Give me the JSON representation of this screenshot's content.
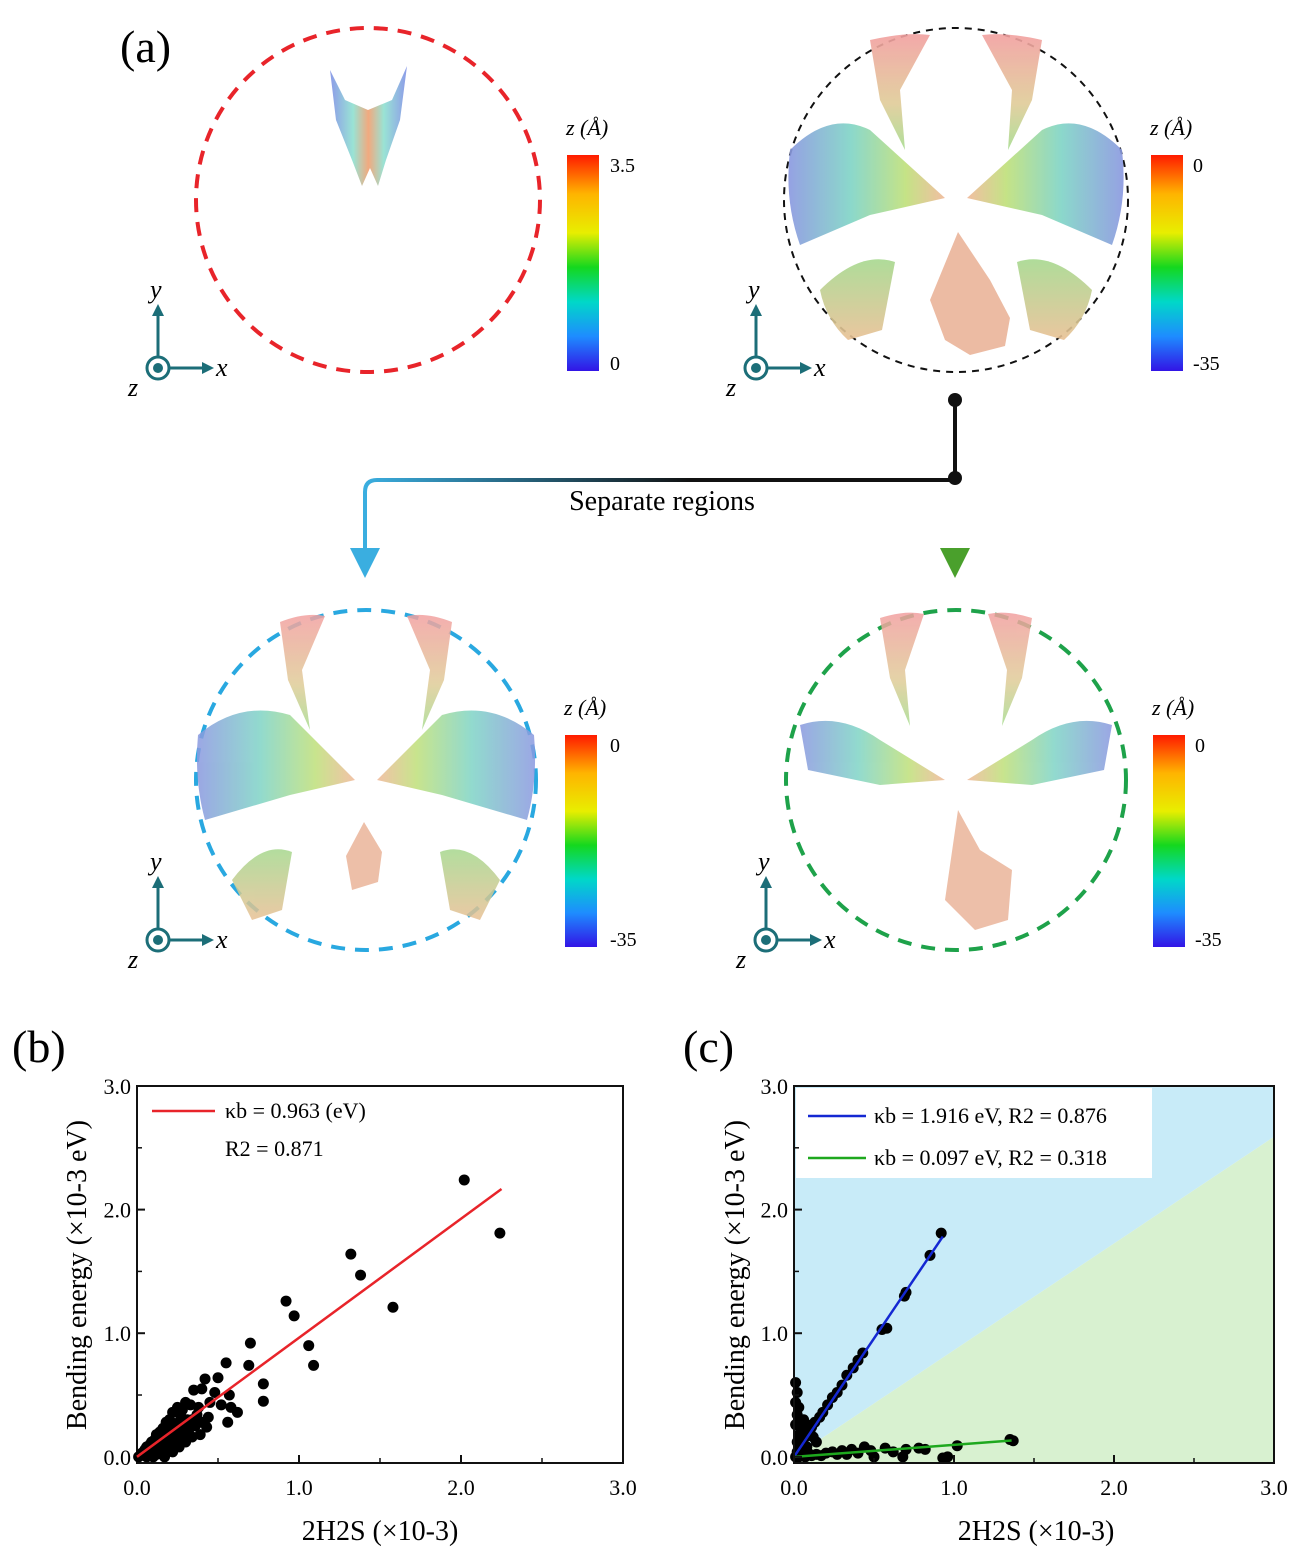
{
  "panel_a": {
    "label": "(a)",
    "axis_labels": {
      "y": "y",
      "x": "x",
      "z": "z"
    },
    "maps": [
      {
        "colorbar_title": "z (Å)",
        "cb_max": "3.5",
        "cb_min": "0",
        "border_color": "#e8242a"
      },
      {
        "colorbar_title": "z (Å)",
        "cb_max": "0",
        "cb_min": "-35",
        "border_color": "#111111"
      },
      {
        "colorbar_title": "z (Å)",
        "cb_max": "0",
        "cb_min": "-35",
        "border_color": "#29a8e0"
      },
      {
        "colorbar_title": "z (Å)",
        "cb_max": "0",
        "cb_min": "-35",
        "border_color": "#1ea24a"
      }
    ],
    "flow_label": "Separate regions",
    "arrow_colors": {
      "left": "#3aaee0",
      "right": "#4aa02c"
    }
  },
  "panel_b": {
    "label": "(b)",
    "chart_data": {
      "type": "scatter",
      "xlabel": "2H2S (×10-3)",
      "ylabel": "Bending energy (×10-3 eV)",
      "xlim": [
        0,
        3.0
      ],
      "ylim": [
        -0.05,
        3.0
      ],
      "xticks": [
        "0.0",
        "1.0",
        "2.0",
        "3.0"
      ],
      "yticks": [
        "0.0",
        "1.0",
        "2.0",
        "3.0"
      ],
      "legend": {
        "line1": "κb = 0.963 (eV)",
        "line2": "R2 = 0.871"
      },
      "fit": {
        "slope": 0.963,
        "x_range": [
          0,
          2.25
        ],
        "color": "#e8242a"
      },
      "points": [
        [
          2.02,
          2.24
        ],
        [
          2.24,
          1.81
        ],
        [
          1.32,
          1.64
        ],
        [
          1.38,
          1.47
        ],
        [
          1.58,
          1.21
        ],
        [
          0.92,
          1.26
        ],
        [
          0.97,
          1.14
        ],
        [
          1.06,
          0.9
        ],
        [
          1.09,
          0.74
        ],
        [
          0.7,
          0.92
        ],
        [
          0.69,
          0.74
        ],
        [
          0.78,
          0.59
        ],
        [
          0.78,
          0.45
        ],
        [
          0.55,
          0.76
        ],
        [
          0.5,
          0.64
        ],
        [
          0.42,
          0.63
        ],
        [
          0.57,
          0.5
        ],
        [
          0.48,
          0.52
        ],
        [
          0.52,
          0.42
        ],
        [
          0.58,
          0.4
        ],
        [
          0.4,
          0.55
        ],
        [
          0.35,
          0.54
        ],
        [
          0.45,
          0.44
        ],
        [
          0.44,
          0.32
        ],
        [
          0.56,
          0.28
        ],
        [
          0.62,
          0.36
        ],
        [
          0.38,
          0.4
        ],
        [
          0.33,
          0.42
        ],
        [
          0.3,
          0.44
        ],
        [
          0.34,
          0.3
        ],
        [
          0.28,
          0.38
        ],
        [
          0.25,
          0.4
        ],
        [
          0.27,
          0.33
        ],
        [
          0.22,
          0.36
        ],
        [
          0.3,
          0.26
        ],
        [
          0.26,
          0.28
        ],
        [
          0.2,
          0.3
        ],
        [
          0.23,
          0.25
        ],
        [
          0.18,
          0.28
        ],
        [
          0.21,
          0.2
        ],
        [
          0.16,
          0.23
        ],
        [
          0.14,
          0.2
        ],
        [
          0.19,
          0.16
        ],
        [
          0.12,
          0.18
        ],
        [
          0.11,
          0.14
        ],
        [
          0.15,
          0.12
        ],
        [
          0.09,
          0.12
        ],
        [
          0.08,
          0.1
        ],
        [
          0.13,
          0.08
        ],
        [
          0.06,
          0.08
        ],
        [
          0.05,
          0.06
        ],
        [
          0.1,
          0.05
        ],
        [
          0.04,
          0.04
        ],
        [
          0.03,
          0.03
        ],
        [
          0.07,
          0.02
        ],
        [
          0.02,
          0.01
        ],
        [
          0.12,
          0.02
        ],
        [
          0.16,
          0.06
        ],
        [
          0.2,
          0.1
        ],
        [
          0.24,
          0.14
        ],
        [
          0.28,
          0.18
        ],
        [
          0.32,
          0.22
        ],
        [
          0.36,
          0.25
        ],
        [
          0.17,
          0.0
        ],
        [
          0.22,
          0.04
        ],
        [
          0.26,
          0.08
        ],
        [
          0.1,
          0.0
        ],
        [
          0.14,
          0.03
        ],
        [
          0.3,
          0.12
        ],
        [
          0.34,
          0.16
        ],
        [
          0.4,
          0.28
        ],
        [
          0.01,
          0.0
        ],
        [
          0.05,
          0.01
        ],
        [
          0.08,
          0.04
        ],
        [
          0.11,
          0.07
        ],
        [
          0.13,
          0.1
        ],
        [
          0.15,
          0.14
        ],
        [
          0.17,
          0.17
        ],
        [
          0.19,
          0.21
        ],
        [
          0.21,
          0.24
        ],
        [
          0.23,
          0.27
        ],
        [
          0.06,
          0.0
        ],
        [
          0.09,
          0.02
        ],
        [
          0.18,
          0.12
        ],
        [
          0.25,
          0.2
        ],
        [
          0.29,
          0.22
        ],
        [
          0.31,
          0.3
        ],
        [
          0.37,
          0.34
        ],
        [
          0.43,
          0.24
        ],
        [
          0.39,
          0.18
        ]
      ]
    }
  },
  "panel_c": {
    "label": "(c)",
    "chart_data": {
      "type": "scatter",
      "xlabel": "2H2S (×10-3)",
      "ylabel": "Bending energy (×10-3 eV)",
      "xlim": [
        0,
        3.0
      ],
      "ylim": [
        -0.05,
        3.0
      ],
      "xticks": [
        "0.0",
        "1.0",
        "2.0",
        "3.0"
      ],
      "yticks": [
        "0.0",
        "1.0",
        "2.0",
        "3.0"
      ],
      "regions": {
        "upper_color": "#c8ebf8",
        "lower_color": "#d8f1d0",
        "boundary_slope": 0.863
      },
      "series": [
        {
          "legend": "κb = 1.916 eV, R2 = 0.876",
          "color": "#1428d2",
          "slope": 1.916,
          "x_range": [
            0,
            0.93
          ],
          "points": [
            [
              0.92,
              1.81
            ],
            [
              0.85,
              1.63
            ],
            [
              0.7,
              1.33
            ],
            [
              0.69,
              1.3
            ],
            [
              0.58,
              1.04
            ],
            [
              0.55,
              1.03
            ],
            [
              0.43,
              0.84
            ],
            [
              0.4,
              0.78
            ],
            [
              0.37,
              0.72
            ],
            [
              0.33,
              0.66
            ],
            [
              0.3,
              0.58
            ],
            [
              0.27,
              0.52
            ],
            [
              0.24,
              0.48
            ],
            [
              0.21,
              0.42
            ],
            [
              0.18,
              0.36
            ],
            [
              0.16,
              0.32
            ],
            [
              0.13,
              0.28
            ],
            [
              0.11,
              0.24
            ],
            [
              0.09,
              0.2
            ],
            [
              0.07,
              0.16
            ],
            [
              0.05,
              0.12
            ],
            [
              0.03,
              0.08
            ],
            [
              0.02,
              0.04
            ],
            [
              0.01,
              0.6
            ],
            [
              0.02,
              0.52
            ],
            [
              0.01,
              0.44
            ],
            [
              0.03,
              0.4
            ],
            [
              0.02,
              0.34
            ],
            [
              0.04,
              0.3
            ],
            [
              0.01,
              0.26
            ],
            [
              0.05,
              0.22
            ],
            [
              0.06,
              0.3
            ],
            [
              0.08,
              0.26
            ],
            [
              0.1,
              0.2
            ],
            [
              0.12,
              0.16
            ],
            [
              0.14,
              0.12
            ],
            [
              0.03,
              0.18
            ],
            [
              0.02,
              0.12
            ],
            [
              0.04,
              0.06
            ],
            [
              0.06,
              0.02
            ],
            [
              0.01,
              0.0
            ],
            [
              0.08,
              0.08
            ]
          ]
        },
        {
          "legend": "κb = 0.097 eV, R2 = 0.318",
          "color": "#1ea81e",
          "slope": 0.097,
          "x_range": [
            0,
            1.36
          ],
          "points": [
            [
              1.35,
              0.14
            ],
            [
              1.37,
              0.13
            ],
            [
              1.02,
              0.09
            ],
            [
              0.96,
              0.0
            ],
            [
              0.93,
              -0.01
            ],
            [
              0.78,
              0.07
            ],
            [
              0.7,
              0.06
            ],
            [
              0.62,
              0.04
            ],
            [
              0.57,
              0.07
            ],
            [
              0.5,
              0.0
            ],
            [
              0.48,
              0.05
            ],
            [
              0.44,
              0.08
            ],
            [
              0.4,
              0.03
            ],
            [
              0.36,
              0.06
            ],
            [
              0.33,
              0.02
            ],
            [
              0.3,
              0.05
            ],
            [
              0.27,
              0.02
            ],
            [
              0.24,
              0.04
            ],
            [
              0.2,
              0.03
            ],
            [
              0.17,
              0.01
            ],
            [
              0.14,
              0.02
            ],
            [
              0.11,
              0.01
            ],
            [
              0.09,
              0.03
            ],
            [
              0.07,
              0.0
            ],
            [
              0.05,
              0.02
            ],
            [
              0.03,
              0.0
            ],
            [
              0.02,
              0.01
            ],
            [
              0.68,
              0.0
            ],
            [
              0.82,
              0.06
            ]
          ]
        }
      ]
    }
  }
}
